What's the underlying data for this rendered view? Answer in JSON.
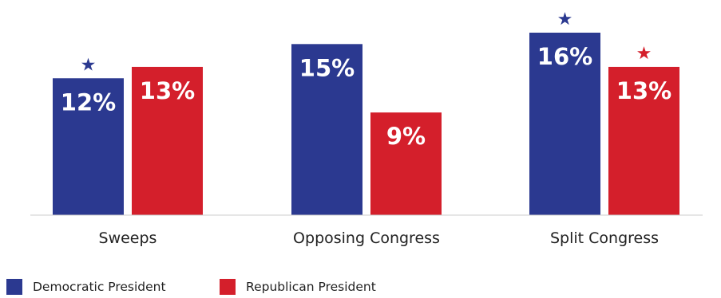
{
  "chart_data": {
    "type": "bar",
    "categories": [
      "Sweeps",
      "Opposing Congress",
      "Split Congress"
    ],
    "series": [
      {
        "name": "Democratic President",
        "values": [
          12,
          15,
          16
        ],
        "labels": [
          "12%",
          "15%",
          "16%"
        ],
        "starred": [
          true,
          false,
          true
        ],
        "color": "#2b3990"
      },
      {
        "name": "Republican President",
        "values": [
          13,
          9,
          13
        ],
        "labels": [
          "13%",
          "9%",
          "13%"
        ],
        "starred": [
          false,
          false,
          true
        ],
        "color": "#d41f2b"
      }
    ],
    "title": "",
    "xlabel": "",
    "ylabel": "",
    "ylim": [
      0,
      17.5
    ],
    "grid": false,
    "legend": "bottom-left",
    "star_symbol": "★",
    "axis_color": "#cccccc"
  }
}
